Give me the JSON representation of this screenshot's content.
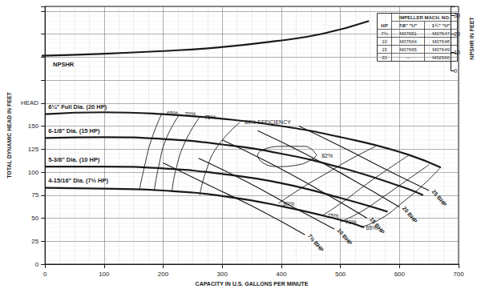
{
  "chart_data": {
    "type": "line",
    "xlabel": "CAPACITY IN U.S. GALLONS PER MINUTE",
    "ylabel": "TOTAL DYNAMIC HEAD IN FEET",
    "y2label": "NPSHR IN FEET",
    "xlim": [
      0,
      700
    ],
    "xticks": [
      0,
      100,
      200,
      300,
      400,
      500,
      600,
      700
    ],
    "ylim": [
      0,
      280
    ],
    "yticks": [
      0,
      25,
      50,
      75,
      100,
      125,
      150,
      {
        "value": 175,
        "label": "HEAD"
      }
    ],
    "y2lim": [
      0,
      35
    ],
    "y2ticks": [
      0,
      10,
      20,
      30
    ],
    "grid": true,
    "series": [
      {
        "name": "6¼\" Full Dia. (20 HP)",
        "line_style": "thick",
        "x": [
          0,
          100,
          200,
          300,
          400,
          500,
          600,
          670
        ],
        "values": [
          163,
          165,
          163,
          158,
          150,
          138,
          122,
          105
        ]
      },
      {
        "name": "6-1/8\" Dia. (15 HP)",
        "line_style": "thick",
        "x": [
          0,
          100,
          200,
          300,
          400,
          500,
          600,
          640
        ],
        "values": [
          137,
          138,
          136,
          130,
          120,
          105,
          85,
          75
        ]
      },
      {
        "name": "5-3/8\" Dia. (10 HP)",
        "line_style": "thick",
        "x": [
          0,
          100,
          200,
          300,
          400,
          500,
          580
        ],
        "values": [
          106,
          106,
          104,
          98,
          88,
          72,
          57
        ]
      },
      {
        "name": "4-15/16\" Dia. (7½ HP)",
        "line_style": "thick",
        "x": [
          0,
          100,
          200,
          300,
          400,
          500,
          540
        ],
        "values": [
          83,
          82,
          80,
          74,
          63,
          48,
          40
        ]
      },
      {
        "name": "65%",
        "line_style": "thin",
        "x": [
          160,
          168,
          180,
          198
        ],
        "values": [
          81,
          105,
          135,
          164
        ]
      },
      {
        "name": "70%",
        "line_style": "thin",
        "x": [
          185,
          192,
          205,
          228
        ],
        "values": [
          80,
          105,
          136,
          163
        ]
      },
      {
        "name": "75%",
        "line_style": "thin",
        "x": [
          215,
          222,
          238,
          262
        ],
        "values": [
          79,
          104,
          134,
          160
        ]
      },
      {
        "name": "80% EFFICIENCY",
        "line_style": "thin",
        "x": [
          262,
          272,
          292,
          330
        ],
        "values": [
          75,
          100,
          128,
          154
        ]
      },
      {
        "name": "82%",
        "line_style": "thin",
        "x": [
          460,
          440,
          400,
          360,
          390,
          430,
          460
        ],
        "values": [
          118,
          128,
          128,
          118,
          106,
          108,
          118
        ]
      },
      {
        "name": "80%",
        "line_style": "thin",
        "x": [
          560,
          520,
          480,
          440,
          395
        ],
        "values": [
          128,
          115,
          100,
          85,
          66
        ]
      },
      {
        "name": "75%",
        "line_style": "thin",
        "x": [
          615,
          580,
          540,
          505,
          470
        ],
        "values": [
          118,
          103,
          85,
          68,
          53
        ]
      },
      {
        "name": "70%",
        "line_style": "thin",
        "x": [
          650,
          610,
          570,
          535,
          500
        ],
        "values": [
          108,
          90,
          72,
          57,
          46
        ]
      },
      {
        "name": "65%",
        "line_style": "thin",
        "x": [
          668,
          640,
          605,
          570,
          535
        ],
        "values": [
          104,
          86,
          67,
          50,
          40
        ]
      },
      {
        "name": "7½ BHP",
        "line_style": "medium",
        "x": [
          200,
          280,
          360,
          440
        ],
        "values": [
          110,
          85,
          60,
          32
        ]
      },
      {
        "name": "10 BHP",
        "line_style": "medium",
        "x": [
          260,
          340,
          420,
          490
        ],
        "values": [
          115,
          90,
          62,
          38
        ]
      },
      {
        "name": "15 BHP",
        "line_style": "medium",
        "x": [
          300,
          380,
          460,
          545
        ],
        "values": [
          135,
          110,
          82,
          50
        ]
      },
      {
        "name": "20 BHP",
        "line_style": "medium",
        "x": [
          360,
          440,
          520,
          600
        ],
        "values": [
          145,
          120,
          92,
          62
        ]
      },
      {
        "name": "25 BHP",
        "line_style": "medium",
        "x": [
          430,
          510,
          580,
          650
        ],
        "values": [
          150,
          125,
          102,
          80
        ]
      },
      {
        "name": "NPSHR",
        "line_style": "thick",
        "axis": "y2",
        "x": [
          0,
          100,
          200,
          300,
          400,
          480,
          560
        ],
        "values": [
          8,
          9,
          10.5,
          12.5,
          16,
          20,
          27
        ]
      }
    ],
    "table": {
      "title": "IMPELLER MACH. NO.",
      "header": [
        "HP",
        "7/8\" \"U\"",
        "1¼\" \"U\""
      ],
      "rows": [
        [
          "7½",
          "M07651",
          "M07647"
        ],
        [
          "10",
          "M07664",
          "M07648"
        ],
        [
          "15",
          "M07665",
          "M07649"
        ],
        [
          "20",
          "--",
          "M02960"
        ]
      ]
    }
  }
}
